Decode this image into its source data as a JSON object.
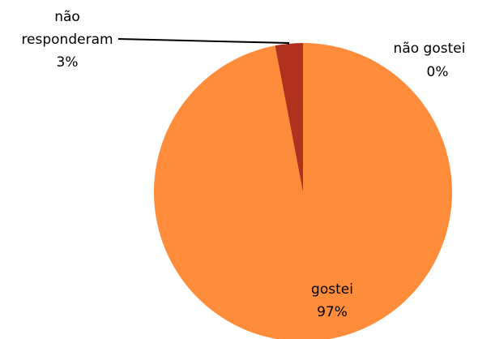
{
  "chart_data": {
    "type": "pie",
    "slices": [
      {
        "label": "gostei",
        "value": 97,
        "value_label": "97%",
        "color": "#FF8C3A"
      },
      {
        "label": "não responderam",
        "value": 3,
        "value_label": "3%",
        "color": "#B0321C"
      },
      {
        "label": "não gostei",
        "value": 0,
        "value_label": "0%",
        "color": "#FF8C3A"
      }
    ],
    "data_labels": {
      "gostei": {
        "name": "gostei",
        "pct": "97%"
      },
      "nao_responderam": {
        "name_line1": "não",
        "name_line2": "responderam",
        "pct": "3%"
      },
      "nao_gostei": {
        "name": "não gostei",
        "pct": "0%"
      }
    }
  }
}
